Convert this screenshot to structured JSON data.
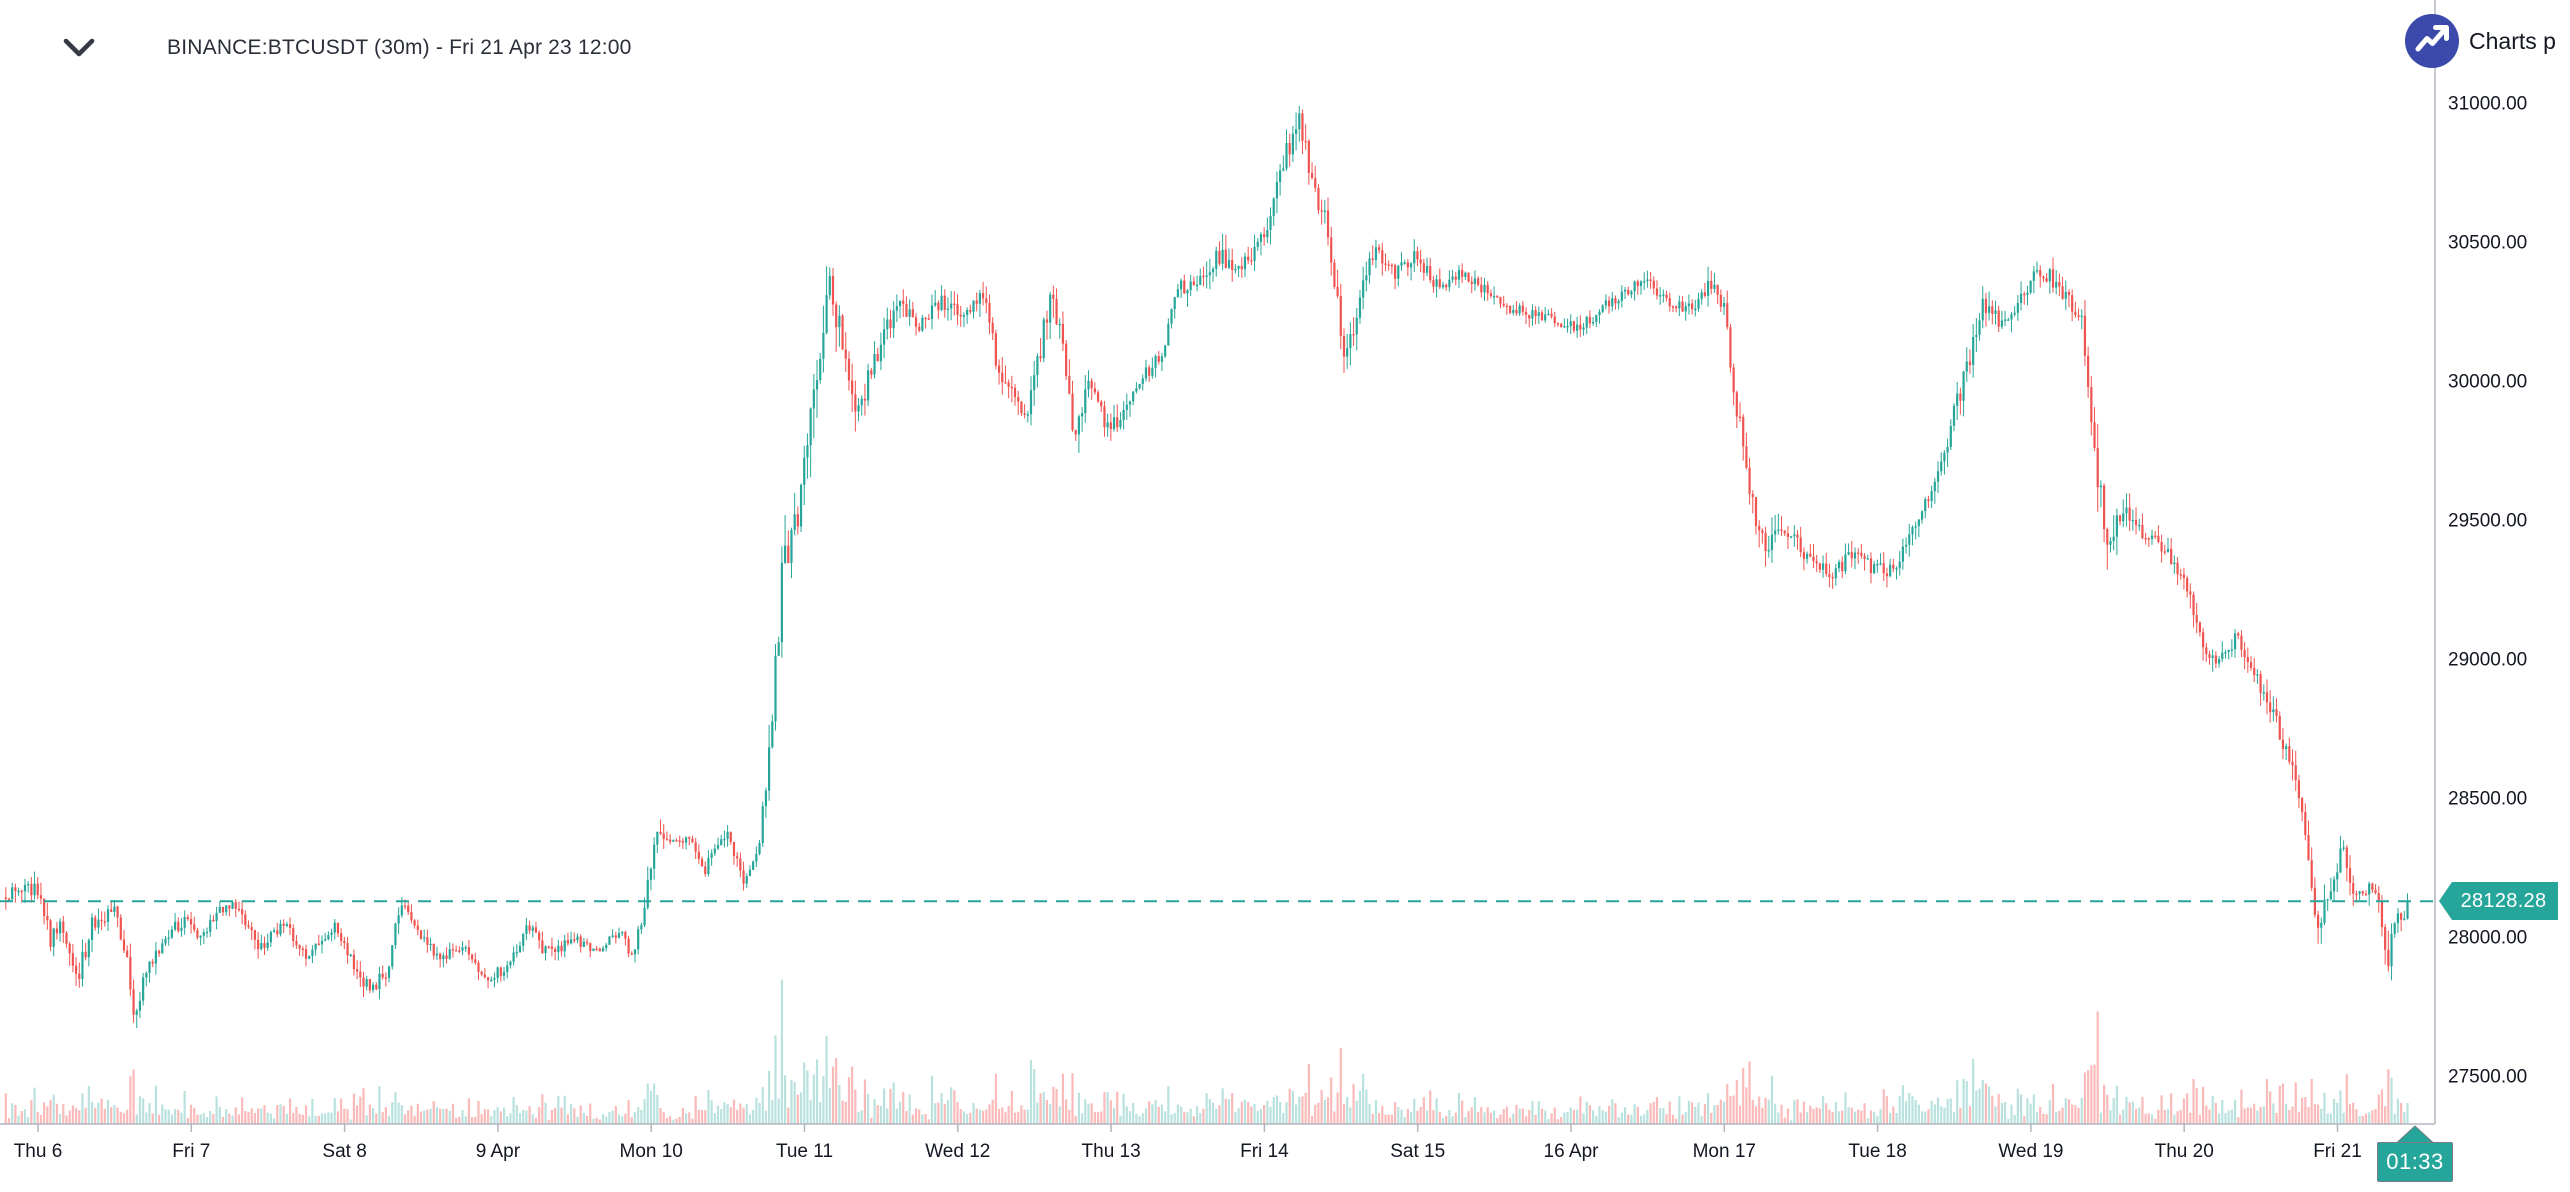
{
  "header": {
    "symbol_title": "BINANCE:BTCUSDT (30m) - Fri 21 Apr 23 12:00"
  },
  "attribution": {
    "label": "Charts p",
    "icon": "trending-up-icon",
    "circle_color": "#3b49ab"
  },
  "price_scale": {
    "current_price": "28128.28",
    "badge_color": "#26a69a",
    "ticks": [
      {
        "value": 31000,
        "label": "31000.00"
      },
      {
        "value": 30500,
        "label": "30500.00"
      },
      {
        "value": 30000,
        "label": "30000.00"
      },
      {
        "value": 29500,
        "label": "29500.00"
      },
      {
        "value": 29000,
        "label": "29000.00"
      },
      {
        "value": 28500,
        "label": "28500.00"
      },
      {
        "value": 28000,
        "label": "28000.00"
      },
      {
        "value": 27500,
        "label": "27500.00"
      }
    ]
  },
  "time_scale": {
    "labels": [
      "Thu 6",
      "Fri 7",
      "Sat 8",
      "9 Apr",
      "Mon 10",
      "Tue 11",
      "Wed 12",
      "Thu 13",
      "Fri 14",
      "Sat 15",
      "16 Apr",
      "Mon 17",
      "Tue 18",
      "Wed 19",
      "Thu 20",
      "Fri 21"
    ],
    "countdown": "01:33",
    "countdown_color": "#26a69a"
  },
  "chart_data": {
    "type": "candlestick",
    "symbol": "BINANCE:BTCUSDT",
    "interval": "30m",
    "as_of": "Fri 21 Apr 23 12:00",
    "up_color": "#26a69a",
    "down_color": "#ef5350",
    "volume_up_color": "rgba(38,166,154,0.32)",
    "volume_down_color": "rgba(239,83,80,0.40)",
    "grid": false,
    "legend_position": "top-left",
    "price_line": {
      "value": 28128.28,
      "style": "dashed",
      "color": "#26a69a"
    },
    "axis_color": "#b2b5be",
    "text_color": "#131722",
    "ylim": [
      27450,
      31150
    ],
    "bars_per_day": 48,
    "x_days": [
      "Thu 6",
      "Fri 7",
      "Sat 8",
      "9 Apr",
      "Mon 10",
      "Tue 11",
      "Wed 12",
      "Thu 13",
      "Fri 14",
      "Sat 15",
      "16 Apr",
      "Mon 17",
      "Tue 18",
      "Wed 19",
      "Thu 20",
      "Fri 21"
    ],
    "keyframes_comment": "Approx close-path keyframes read from the chart: [days since Thu 6 00:00, price USDT, typical bar range $]",
    "keyframes": [
      [
        -0.21,
        28160,
        90
      ],
      [
        0.0,
        28170,
        100
      ],
      [
        0.08,
        27990,
        110
      ],
      [
        0.15,
        28060,
        90
      ],
      [
        0.25,
        27830,
        120
      ],
      [
        0.35,
        28040,
        100
      ],
      [
        0.5,
        28090,
        80
      ],
      [
        0.58,
        27920,
        100
      ],
      [
        0.63,
        27700,
        130
      ],
      [
        0.72,
        27900,
        90
      ],
      [
        0.95,
        28070,
        90
      ],
      [
        1.05,
        28000,
        70
      ],
      [
        1.18,
        28090,
        70
      ],
      [
        1.3,
        28110,
        80
      ],
      [
        1.45,
        27950,
        80
      ],
      [
        1.6,
        28050,
        70
      ],
      [
        1.75,
        27920,
        80
      ],
      [
        1.95,
        28040,
        70
      ],
      [
        2.06,
        27890,
        80
      ],
      [
        2.17,
        27810,
        100
      ],
      [
        2.28,
        27880,
        70
      ],
      [
        2.36,
        28120,
        90
      ],
      [
        2.45,
        28040,
        70
      ],
      [
        2.6,
        27930,
        70
      ],
      [
        2.78,
        27960,
        60
      ],
      [
        2.92,
        27860,
        70
      ],
      [
        3.05,
        27880,
        60
      ],
      [
        3.2,
        28050,
        70
      ],
      [
        3.32,
        27940,
        90
      ],
      [
        3.5,
        27990,
        60
      ],
      [
        3.65,
        27950,
        60
      ],
      [
        3.8,
        28030,
        60
      ],
      [
        3.88,
        27920,
        70
      ],
      [
        3.97,
        28140,
        110
      ],
      [
        4.03,
        28420,
        140
      ],
      [
        4.1,
        28330,
        90
      ],
      [
        4.25,
        28370,
        70
      ],
      [
        4.35,
        28240,
        80
      ],
      [
        4.5,
        28380,
        70
      ],
      [
        4.6,
        28200,
        90
      ],
      [
        4.7,
        28330,
        80
      ],
      [
        4.78,
        28720,
        200
      ],
      [
        4.85,
        29280,
        260
      ],
      [
        4.95,
        29520,
        220
      ],
      [
        5.02,
        29750,
        260
      ],
      [
        5.1,
        30150,
        280
      ],
      [
        5.16,
        30330,
        240
      ],
      [
        5.25,
        30140,
        160
      ],
      [
        5.33,
        29870,
        180
      ],
      [
        5.45,
        30060,
        120
      ],
      [
        5.6,
        30280,
        110
      ],
      [
        5.75,
        30190,
        100
      ],
      [
        5.9,
        30290,
        110
      ],
      [
        6.05,
        30230,
        100
      ],
      [
        6.18,
        30320,
        110
      ],
      [
        6.28,
        29990,
        150
      ],
      [
        6.45,
        29890,
        110
      ],
      [
        6.6,
        30280,
        170
      ],
      [
        6.68,
        30180,
        110
      ],
      [
        6.76,
        29800,
        170
      ],
      [
        6.85,
        30000,
        110
      ],
      [
        6.95,
        29860,
        100
      ],
      [
        7.06,
        29850,
        110
      ],
      [
        7.2,
        30010,
        90
      ],
      [
        7.33,
        30090,
        90
      ],
      [
        7.43,
        30340,
        120
      ],
      [
        7.55,
        30330,
        100
      ],
      [
        7.7,
        30440,
        140
      ],
      [
        7.85,
        30420,
        100
      ],
      [
        8.0,
        30510,
        110
      ],
      [
        8.1,
        30750,
        130
      ],
      [
        8.22,
        30940,
        160
      ],
      [
        8.32,
        30700,
        140
      ],
      [
        8.42,
        30540,
        120
      ],
      [
        8.52,
        30060,
        170
      ],
      [
        8.62,
        30290,
        120
      ],
      [
        8.72,
        30470,
        110
      ],
      [
        8.85,
        30380,
        90
      ],
      [
        9.0,
        30450,
        120
      ],
      [
        9.12,
        30340,
        90
      ],
      [
        9.3,
        30390,
        70
      ],
      [
        9.5,
        30300,
        80
      ],
      [
        9.65,
        30250,
        80
      ],
      [
        9.85,
        30230,
        60
      ],
      [
        10.05,
        30190,
        80
      ],
      [
        10.25,
        30280,
        70
      ],
      [
        10.48,
        30370,
        80
      ],
      [
        10.65,
        30260,
        70
      ],
      [
        10.82,
        30280,
        80
      ],
      [
        10.9,
        30340,
        130
      ],
      [
        11.0,
        30270,
        90
      ],
      [
        11.08,
        29890,
        180
      ],
      [
        11.16,
        29640,
        160
      ],
      [
        11.25,
        29400,
        170
      ],
      [
        11.4,
        29480,
        110
      ],
      [
        11.55,
        29350,
        100
      ],
      [
        11.7,
        29290,
        110
      ],
      [
        11.85,
        29400,
        90
      ],
      [
        12.0,
        29310,
        110
      ],
      [
        12.1,
        29330,
        90
      ],
      [
        12.25,
        29480,
        100
      ],
      [
        12.42,
        29720,
        110
      ],
      [
        12.58,
        30040,
        130
      ],
      [
        12.7,
        30290,
        140
      ],
      [
        12.82,
        30190,
        100
      ],
      [
        12.95,
        30320,
        110
      ],
      [
        13.05,
        30410,
        120
      ],
      [
        13.2,
        30330,
        100
      ],
      [
        13.33,
        30230,
        110
      ],
      [
        13.42,
        29690,
        260
      ],
      [
        13.5,
        29440,
        200
      ],
      [
        13.62,
        29520,
        120
      ],
      [
        13.75,
        29450,
        100
      ],
      [
        13.88,
        29380,
        100
      ],
      [
        14.02,
        29240,
        110
      ],
      [
        14.13,
        29040,
        130
      ],
      [
        14.25,
        29000,
        100
      ],
      [
        14.34,
        29090,
        100
      ],
      [
        14.45,
        28940,
        100
      ],
      [
        14.58,
        28820,
        110
      ],
      [
        14.68,
        28630,
        120
      ],
      [
        14.77,
        28480,
        130
      ],
      [
        14.86,
        28040,
        150
      ],
      [
        14.95,
        28160,
        110
      ],
      [
        15.04,
        28330,
        110
      ],
      [
        15.1,
        28140,
        110
      ],
      [
        15.2,
        28180,
        90
      ],
      [
        15.28,
        28110,
        100
      ],
      [
        15.33,
        27890,
        170
      ],
      [
        15.38,
        28070,
        120
      ],
      [
        15.42,
        28030,
        90
      ],
      [
        15.46,
        28128.28,
        90
      ]
    ]
  }
}
